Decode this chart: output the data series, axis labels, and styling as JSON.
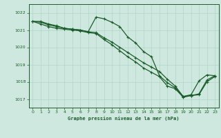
{
  "title": "Graphe pression niveau de la mer (hPa)",
  "bg_color": "#cfe8df",
  "grid_color": "#b0d4c8",
  "line_color": "#1a5c2a",
  "xlim": [
    -0.5,
    23.5
  ],
  "ylim": [
    1016.5,
    1022.5
  ],
  "yticks": [
    1017,
    1018,
    1019,
    1020,
    1021,
    1022
  ],
  "xticks": [
    0,
    1,
    2,
    3,
    4,
    5,
    6,
    7,
    8,
    9,
    10,
    11,
    12,
    13,
    14,
    15,
    16,
    17,
    18,
    19,
    20,
    21,
    22,
    23
  ],
  "series1_x": [
    0,
    1,
    2,
    3,
    4,
    5,
    6,
    7,
    8,
    9,
    10,
    11,
    12,
    13,
    14,
    15,
    16,
    17,
    18,
    19,
    20,
    21,
    22,
    23
  ],
  "series1_y": [
    1021.5,
    1021.5,
    1021.35,
    1021.25,
    1021.1,
    1021.05,
    1021.0,
    1020.9,
    1021.75,
    1021.65,
    1021.45,
    1021.2,
    1020.6,
    1020.25,
    1019.75,
    1019.45,
    1018.35,
    1017.95,
    1017.65,
    1017.15,
    1017.25,
    1018.05,
    1018.4,
    1018.35
  ],
  "series2_x": [
    0,
    1,
    2,
    3,
    4,
    5,
    6,
    7,
    8,
    9,
    10,
    11,
    12,
    13,
    14,
    15,
    16,
    17,
    18,
    19,
    20,
    21,
    22,
    23
  ],
  "series2_y": [
    1021.5,
    1021.35,
    1021.2,
    1021.1,
    1021.05,
    1021.0,
    1020.95,
    1020.85,
    1020.8,
    1020.45,
    1020.15,
    1019.8,
    1019.45,
    1019.15,
    1018.8,
    1018.55,
    1018.3,
    1017.75,
    1017.6,
    1017.1,
    1017.2,
    1017.25,
    1018.0,
    1018.3
  ],
  "series3_x": [
    0,
    1,
    2,
    3,
    4,
    5,
    6,
    7,
    8,
    9,
    10,
    11,
    12,
    13,
    14,
    15,
    16,
    17,
    18,
    19,
    20,
    21,
    22,
    23
  ],
  "series3_y": [
    1021.5,
    1021.45,
    1021.3,
    1021.2,
    1021.1,
    1021.05,
    1021.0,
    1020.9,
    1020.85,
    1020.55,
    1020.3,
    1020.0,
    1019.7,
    1019.4,
    1019.1,
    1018.85,
    1018.6,
    1018.15,
    1017.75,
    1017.15,
    1017.2,
    1017.3,
    1018.1,
    1018.35
  ]
}
